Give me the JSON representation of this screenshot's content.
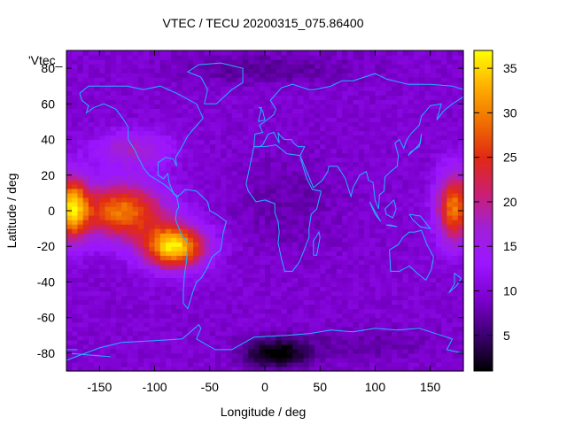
{
  "chart_data": {
    "type": "heatmap",
    "title": "VTEC / TECU 20200315_075.86400",
    "xlabel": "Longitude / deg",
    "ylabel": "Latitude / deg",
    "series_label": "'Vtec_",
    "xlim": [
      -180,
      180
    ],
    "ylim": [
      -90,
      90
    ],
    "x_ticks": [
      -150,
      -100,
      -50,
      0,
      50,
      100,
      150
    ],
    "y_ticks": [
      -80,
      -60,
      -40,
      -20,
      0,
      20,
      40,
      60,
      80
    ],
    "colorbar": {
      "range": [
        1,
        37
      ],
      "ticks": [
        5,
        10,
        15,
        20,
        25,
        30,
        35
      ],
      "palette": [
        "#000000",
        "#3c006f",
        "#7b00cc",
        "#9b16ff",
        "#a020d8",
        "#cc1f70",
        "#e02a14",
        "#f07000",
        "#ffb000",
        "#ffff00"
      ]
    },
    "grid": false,
    "legend": "none",
    "resolution": {
      "dlon": 5,
      "dlat": 2.5
    },
    "field_features": [
      {
        "desc": "background",
        "value": 10
      },
      {
        "lon": -80,
        "lat": -20,
        "value": 36
      },
      {
        "lon": -170,
        "lat": 0,
        "value": 30
      },
      {
        "lon": 165,
        "lat": 5,
        "value": 27
      },
      {
        "lon": 10,
        "lat": -80,
        "value": 1
      },
      {
        "lon": 0,
        "lat": 80,
        "value": 6
      }
    ],
    "coastline_color": "#1fb4ff"
  }
}
